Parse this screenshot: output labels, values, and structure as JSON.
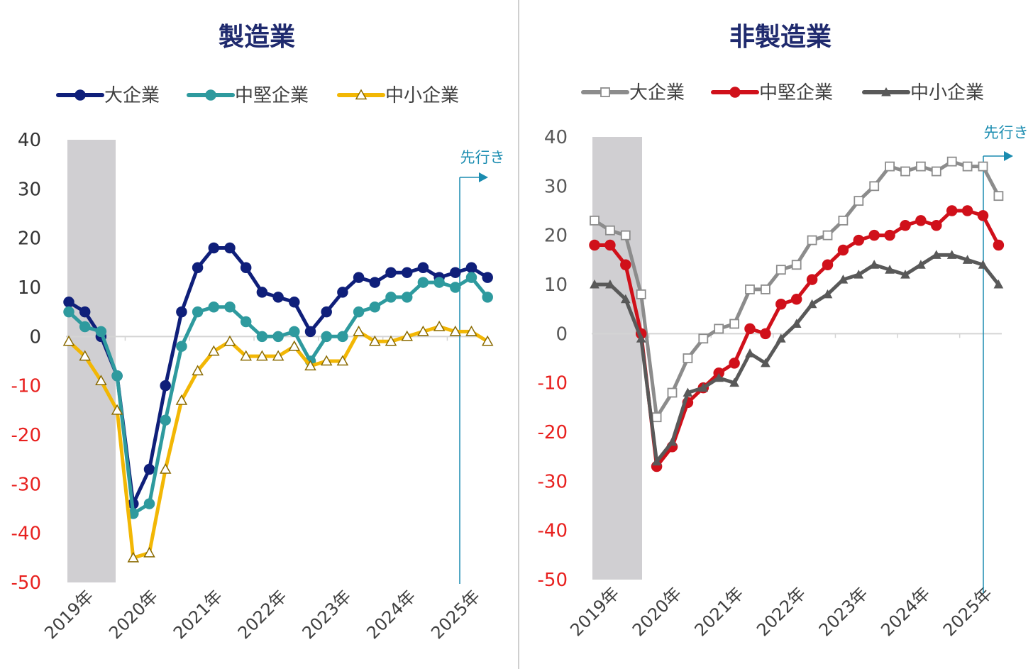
{
  "chart_data": [
    {
      "type": "line",
      "title": "製造業",
      "xlabel": "",
      "ylabel": "",
      "ylim": [
        -50,
        40
      ],
      "yticks": [
        40,
        30,
        20,
        10,
        0,
        -10,
        -20,
        -30,
        -40,
        -50
      ],
      "negative_tick_color": "#e8201e",
      "positive_tick_color": "#333333",
      "x_tick_labels": [
        "2019年",
        "2020年",
        "2021年",
        "2022年",
        "2023年",
        "2024年",
        "2025年"
      ],
      "x_tick_start_index": [
        0,
        4,
        8,
        12,
        16,
        20,
        24
      ],
      "shaded_index_range": [
        0,
        3
      ],
      "forecast_label": "先行き",
      "forecast_index": 24.5,
      "series": [
        {
          "name": "大企業",
          "color": "#0f1f7a",
          "marker": "circle",
          "values": [
            7,
            5,
            0,
            -8,
            -34,
            -27,
            -10,
            5,
            14,
            18,
            18,
            14,
            9,
            8,
            7,
            1,
            5,
            9,
            12,
            11,
            13,
            13,
            14,
            12,
            13,
            14,
            12
          ]
        },
        {
          "name": "中堅企業",
          "color": "#2e9a9e",
          "marker": "circle",
          "values": [
            5,
            2,
            1,
            -8,
            -36,
            -34,
            -17,
            -2,
            5,
            6,
            6,
            3,
            0,
            0,
            1,
            -5,
            0,
            0,
            5,
            6,
            8,
            8,
            11,
            11,
            10,
            12,
            8
          ]
        },
        {
          "name": "中小企業",
          "color": "#f2b705",
          "marker": "triangle",
          "values": [
            -1,
            -4,
            -9,
            -15,
            -45,
            -44,
            -27,
            -13,
            -7,
            -3,
            -1,
            -4,
            -4,
            -4,
            -2,
            -6,
            -5,
            -5,
            1,
            -1,
            -1,
            0,
            1,
            2,
            1,
            1,
            -1
          ]
        }
      ]
    },
    {
      "type": "line",
      "title": "非製造業",
      "xlabel": "",
      "ylabel": "",
      "ylim": [
        -50,
        40
      ],
      "yticks": [
        40,
        30,
        20,
        10,
        0,
        -10,
        -20,
        -30,
        -40,
        -50
      ],
      "negative_tick_color": "#e8201e",
      "positive_tick_color": "#595959",
      "x_tick_labels": [
        "2019年",
        "2020年",
        "2021年",
        "2022年",
        "2023年",
        "2024年",
        "2025年"
      ],
      "x_tick_start_index": [
        0,
        4,
        8,
        12,
        16,
        20,
        24
      ],
      "shaded_index_range": [
        0,
        3
      ],
      "forecast_label": "先行き",
      "forecast_index": 24.5,
      "series": [
        {
          "name": "大企業",
          "color": "#8c8c8c",
          "marker": "square-open",
          "values": [
            23,
            21,
            20,
            8,
            -17,
            -12,
            -5,
            -1,
            1,
            2,
            9,
            9,
            13,
            14,
            19,
            20,
            23,
            27,
            30,
            34,
            33,
            34,
            33,
            35,
            34,
            34,
            28
          ]
        },
        {
          "name": "中堅企業",
          "color": "#d0101a",
          "marker": "circle",
          "values": [
            18,
            18,
            14,
            0,
            -27,
            -23,
            -14,
            -11,
            -8,
            -6,
            1,
            0,
            6,
            7,
            11,
            14,
            17,
            19,
            20,
            20,
            22,
            23,
            22,
            25,
            25,
            24,
            18
          ]
        },
        {
          "name": "中小企業",
          "color": "#595959",
          "marker": "triangle-filled",
          "values": [
            10,
            10,
            7,
            -1,
            -26,
            -22,
            -12,
            -11,
            -9,
            -10,
            -4,
            -6,
            -1,
            2,
            6,
            8,
            11,
            12,
            14,
            13,
            12,
            14,
            16,
            16,
            15,
            14,
            10
          ]
        }
      ]
    }
  ]
}
